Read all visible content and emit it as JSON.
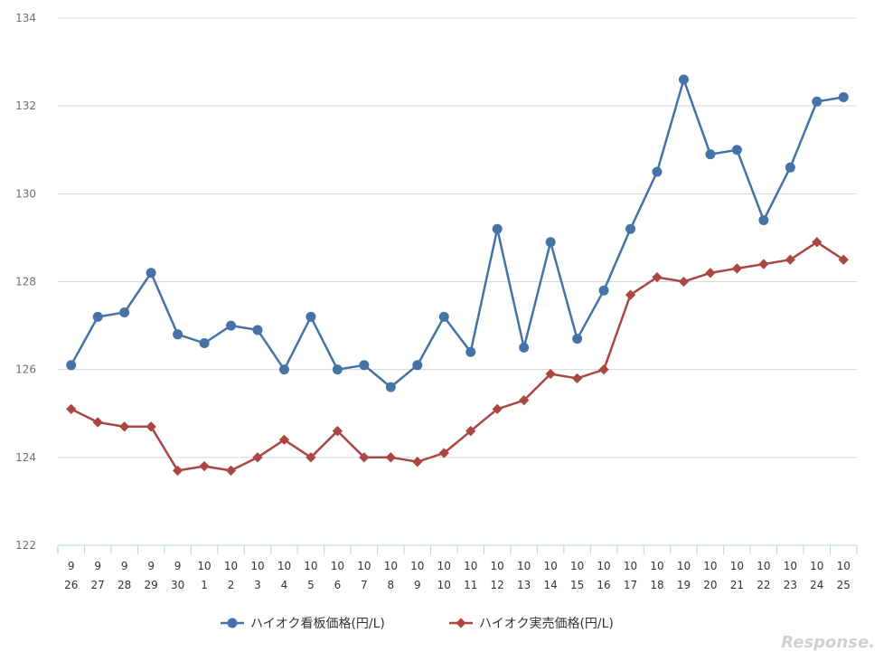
{
  "chart_data": {
    "type": "line",
    "title": "",
    "xlabel": "",
    "ylabel": "",
    "ylim": [
      122,
      134
    ],
    "yticks": [
      122,
      124,
      126,
      128,
      130,
      132,
      134
    ],
    "grid": true,
    "legend_position": "bottom-center",
    "categories": [
      [
        "9",
        "26"
      ],
      [
        "9",
        "27"
      ],
      [
        "9",
        "28"
      ],
      [
        "9",
        "29"
      ],
      [
        "9",
        "30"
      ],
      [
        "10",
        "1"
      ],
      [
        "10",
        "2"
      ],
      [
        "10",
        "3"
      ],
      [
        "10",
        "4"
      ],
      [
        "10",
        "5"
      ],
      [
        "10",
        "6"
      ],
      [
        "10",
        "7"
      ],
      [
        "10",
        "8"
      ],
      [
        "10",
        "9"
      ],
      [
        "10",
        "10"
      ],
      [
        "10",
        "11"
      ],
      [
        "10",
        "12"
      ],
      [
        "10",
        "13"
      ],
      [
        "10",
        "14"
      ],
      [
        "10",
        "15"
      ],
      [
        "10",
        "16"
      ],
      [
        "10",
        "17"
      ],
      [
        "10",
        "18"
      ],
      [
        "10",
        "19"
      ],
      [
        "10",
        "20"
      ],
      [
        "10",
        "21"
      ],
      [
        "10",
        "22"
      ],
      [
        "10",
        "23"
      ],
      [
        "10",
        "24"
      ],
      [
        "10",
        "25"
      ]
    ],
    "series": [
      {
        "name": "ハイオク看板価格(円/L)",
        "color": "#4572a7",
        "marker": "circle",
        "values": [
          126.1,
          127.2,
          127.3,
          128.2,
          126.8,
          126.6,
          127.0,
          126.9,
          126.0,
          127.2,
          126.0,
          126.1,
          125.6,
          126.1,
          127.2,
          126.4,
          129.2,
          126.5,
          128.9,
          126.7,
          127.8,
          129.2,
          130.5,
          132.6,
          130.9,
          131.0,
          129.4,
          130.6,
          132.1,
          132.2
        ]
      },
      {
        "name": "ハイオク実売価格(円/L)",
        "color": "#aa4643",
        "marker": "diamond",
        "values": [
          125.1,
          124.8,
          124.7,
          124.7,
          123.7,
          123.8,
          123.7,
          124.0,
          124.4,
          124.0,
          124.6,
          124.0,
          124.0,
          123.9,
          124.1,
          124.6,
          125.1,
          125.3,
          125.9,
          125.8,
          126.0,
          127.7,
          128.1,
          128.0,
          128.2,
          128.3,
          128.4,
          128.5,
          128.9,
          128.5
        ]
      }
    ]
  },
  "watermark": {
    "text": "Response."
  }
}
